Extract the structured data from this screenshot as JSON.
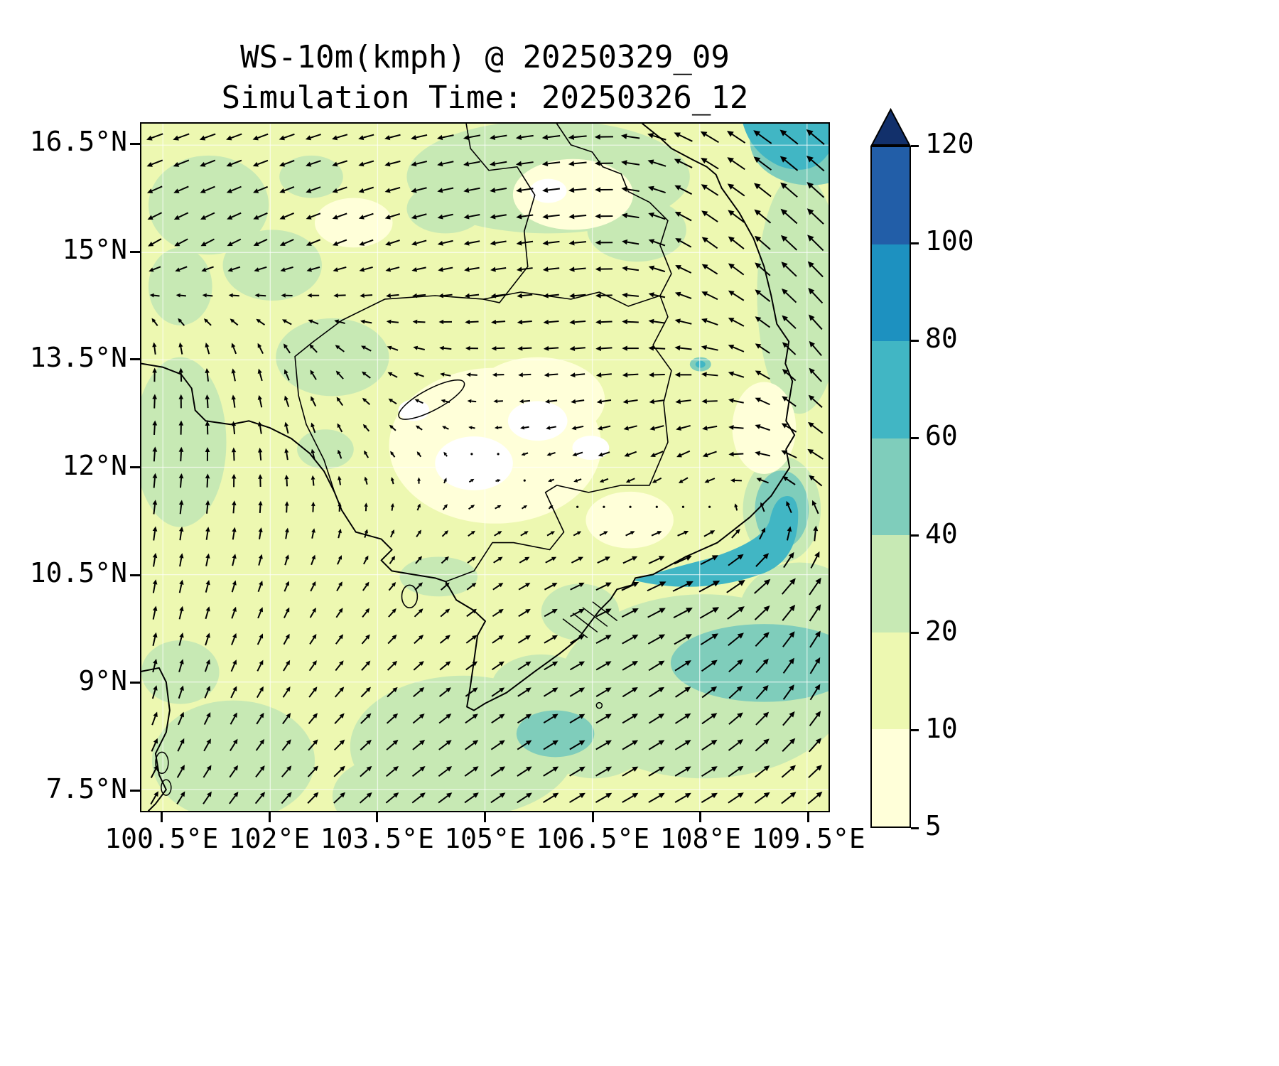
{
  "figure": {
    "title": "WS-10m(kmph) @ 20250329_09",
    "subtitle": "Simulation Time: 20250326_12"
  },
  "chart_data": {
    "type": "heatmap",
    "subtype": "filled-contour-map-with-quiver",
    "title": "WS-10m(kmph) @ 20250329_09",
    "subtitle": "Simulation Time: 20250326_12",
    "variable": "10 m wind speed",
    "units": "kmph",
    "valid_time": "20250329_09",
    "simulation_time": "20250326_12",
    "grid": "on",
    "legend": "colorbar-right",
    "x": {
      "label": "",
      "ticks": [
        "100.5°E",
        "102°E",
        "103.5°E",
        "105°E",
        "106.5°E",
        "108°E",
        "109.5°E"
      ],
      "tick_values": [
        100.5,
        102,
        103.5,
        105,
        106.5,
        108,
        109.5
      ],
      "range": [
        100.2,
        109.8
      ]
    },
    "y": {
      "label": "",
      "ticks": [
        "16.5°N",
        "15°N",
        "13.5°N",
        "12°N",
        "10.5°N",
        "9°N",
        "7.5°N"
      ],
      "tick_values": [
        16.5,
        15,
        13.5,
        12,
        10.5,
        9,
        7.5
      ],
      "range": [
        7.2,
        16.8
      ]
    },
    "colorbar": {
      "orientation": "vertical",
      "levels": [
        5,
        10,
        20,
        40,
        60,
        80,
        100,
        120
      ],
      "colors": [
        "#ffffd9",
        "#edf8b1",
        "#c7e9b4",
        "#7fcdbb",
        "#41b6c4",
        "#1d91c0",
        "#225ea8"
      ],
      "over_color": "#12306b",
      "under_color": "#ffffff"
    },
    "speed_regions": [
      {
        "area": "domain background",
        "speed_kmph": "10-20"
      },
      {
        "area": "scattered inland and offshore patches",
        "speed_kmph": "20-40"
      },
      {
        "area": "calm center near 105E 12N (Cambodia lowlands)",
        "speed_kmph": "<10"
      },
      {
        "area": "offshore jet near 107.5-109.3E 10.5-11.3N",
        "speed_kmph": "60-80"
      },
      {
        "area": "northeast corner offshore",
        "speed_kmph": "60-80"
      },
      {
        "area": "southern and southeastern offshore waters",
        "speed_kmph": "20-40"
      }
    ],
    "wind_field": {
      "grid_lons": [
        100.5,
        102,
        103.5,
        105,
        106.5,
        108,
        109.5
      ],
      "grid_lats": [
        16.5,
        15,
        13.5,
        12,
        10.5,
        9,
        7.5
      ],
      "dir_deg": [
        [
          200,
          200,
          195,
          190,
          185,
          150,
          140
        ],
        [
          210,
          205,
          200,
          190,
          185,
          145,
          135
        ],
        [
          90,
          110,
          150,
          180,
          185,
          175,
          130
        ],
        [
          85,
          95,
          120,
          0,
          200,
          210,
          150
        ],
        [
          80,
          70,
          55,
          35,
          25,
          25,
          55
        ],
        [
          75,
          60,
          45,
          35,
          30,
          35,
          60
        ],
        [
          60,
          50,
          40,
          35,
          30,
          30,
          40
        ]
      ],
      "mag": [
        [
          0.55,
          0.5,
          0.5,
          0.55,
          0.6,
          0.7,
          0.8
        ],
        [
          0.45,
          0.45,
          0.45,
          0.5,
          0.55,
          0.6,
          0.75
        ],
        [
          0.4,
          0.35,
          0.3,
          0.35,
          0.5,
          0.55,
          0.6
        ],
        [
          0.45,
          0.35,
          0.15,
          0.05,
          0.3,
          0.45,
          0.6
        ],
        [
          0.4,
          0.3,
          0.25,
          0.3,
          0.5,
          0.85,
          0.7
        ],
        [
          0.4,
          0.35,
          0.4,
          0.45,
          0.55,
          0.6,
          0.6
        ],
        [
          0.45,
          0.45,
          0.5,
          0.55,
          0.6,
          0.6,
          0.6
        ]
      ]
    }
  }
}
